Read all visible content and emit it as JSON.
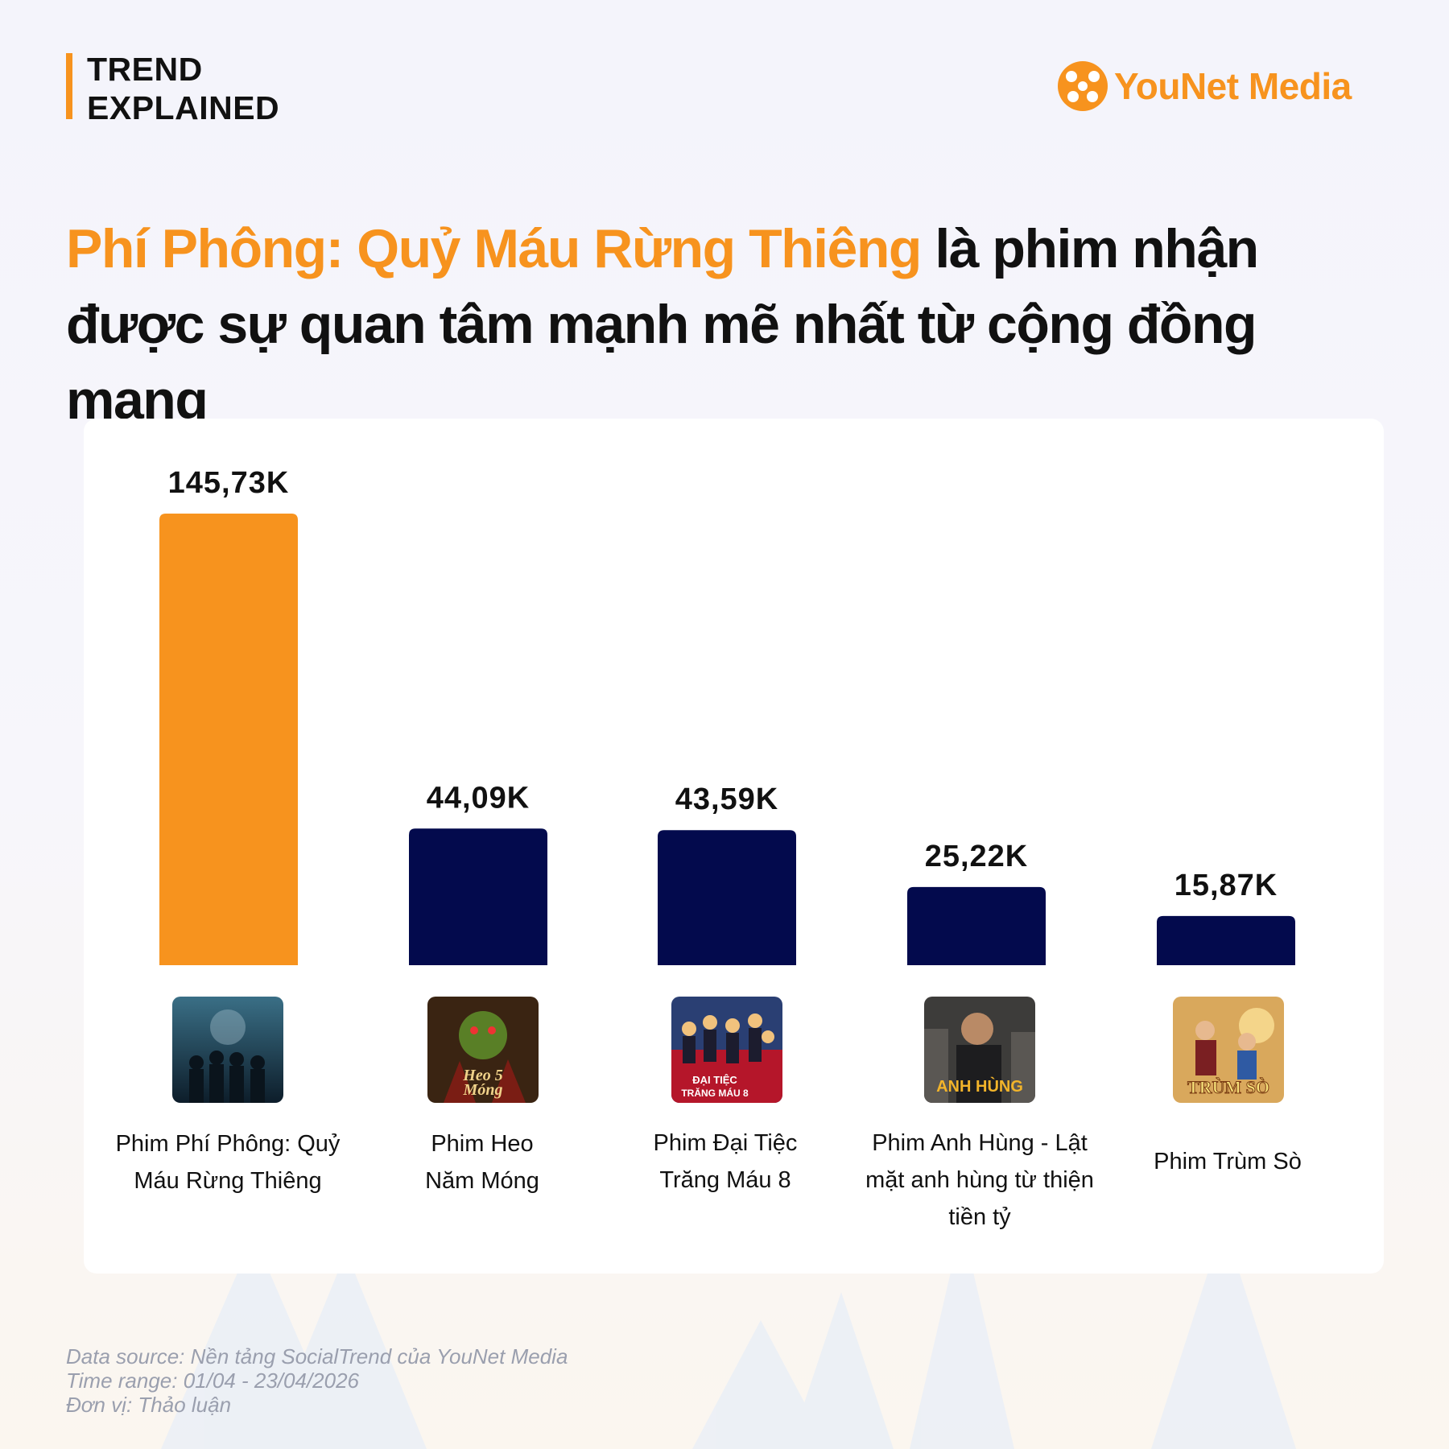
{
  "brand": {
    "line1": "TREND",
    "line2": "EXPLAINED"
  },
  "logo": {
    "text": "YouNet Media"
  },
  "headline": {
    "highlight": "Phí Phông: Quỷ Máu Rừng Thiêng",
    "rest": " là phim nhận được sự quan tâm mạnh mẽ nhất từ cộng đồng mạng"
  },
  "colors": {
    "accent": "#f7931e",
    "navy": "#030a4d"
  },
  "chart_data": {
    "type": "bar",
    "title": "",
    "xlabel": "",
    "ylabel": "Thảo luận",
    "categories": [
      "Phim Phí Phông: Quỷ Máu Rừng Thiêng",
      "Phim Heo Năm Móng",
      "Phim Đại Tiệc Trăng Máu 8",
      "Phim Anh Hùng - Lật mặt anh hùng từ thiện tiền tỷ",
      "Phim Trùm Sò"
    ],
    "label_lines": [
      [
        "Phim Phí Phông: Quỷ",
        "Máu Rừng Thiêng"
      ],
      [
        "Phim Heo",
        "Năm Móng"
      ],
      [
        "Phim Đại Tiệc",
        "Trăng Máu 8"
      ],
      [
        "Phim Anh Hùng - Lật",
        "mặt anh hùng từ thiện",
        "tiền tỷ"
      ],
      [
        "Phim Trùm Sò"
      ]
    ],
    "values": [
      145730,
      44090,
      43590,
      25220,
      15870
    ],
    "value_labels": [
      "145,73K",
      "44,09K",
      "43,59K",
      "25,22K",
      "15,87K"
    ],
    "highlight_index": 0,
    "ylim": [
      0,
      145730
    ],
    "grid": false,
    "legend": "none"
  },
  "posters": [
    {
      "text_lines": []
    },
    {
      "text_lines": [
        "Heo 5",
        "Móng"
      ]
    },
    {
      "text_lines": [
        "ĐẠI TIỆC",
        "TRĂNG MÁU 8"
      ]
    },
    {
      "text_lines": [
        "ANH HÙNG"
      ]
    },
    {
      "text_lines": [
        "TRÙM SÒ"
      ]
    }
  ],
  "footer": {
    "source": "Data source: Nền tảng SocialTrend của YouNet Media",
    "time": "Time range: 01/04 - 23/04/2026",
    "unit": "Đơn vị: Thảo luận"
  }
}
